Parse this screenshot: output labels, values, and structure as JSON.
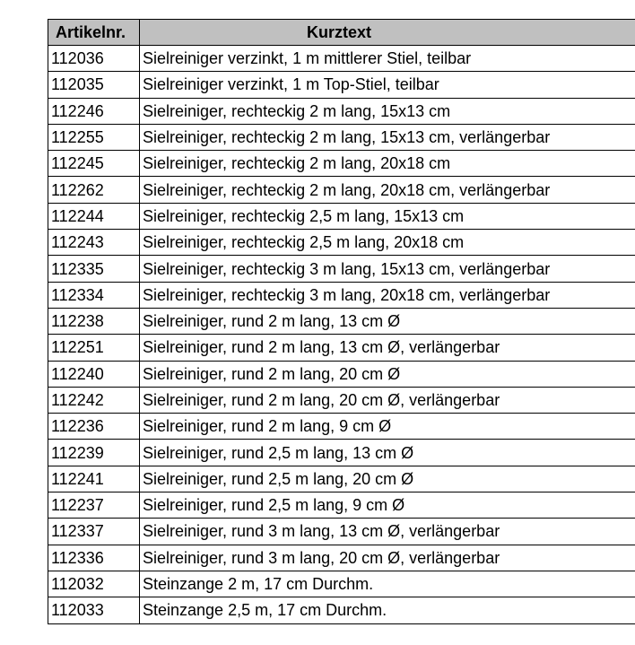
{
  "header": {
    "col1": "Artikelnr.",
    "col2": "Kurztext"
  },
  "rows": [
    [
      "112036",
      "Sielreiniger verzinkt, 1 m mittlerer Stiel, teilbar"
    ],
    [
      "112035",
      "Sielreiniger verzinkt, 1 m Top-Stiel, teilbar"
    ],
    [
      "112246",
      "Sielreiniger, rechteckig 2 m lang, 15x13 cm"
    ],
    [
      "112255",
      "Sielreiniger, rechteckig 2 m lang, 15x13 cm, verlängerbar"
    ],
    [
      "112245",
      "Sielreiniger, rechteckig 2 m lang, 20x18 cm"
    ],
    [
      "112262",
      "Sielreiniger, rechteckig 2 m lang, 20x18 cm, verlängerbar"
    ],
    [
      "112244",
      "Sielreiniger, rechteckig 2,5 m lang, 15x13 cm"
    ],
    [
      "112243",
      "Sielreiniger, rechteckig 2,5 m lang, 20x18 cm"
    ],
    [
      "112335",
      "Sielreiniger, rechteckig 3 m lang, 15x13 cm, verlängerbar"
    ],
    [
      "112334",
      "Sielreiniger, rechteckig 3 m lang, 20x18 cm, verlängerbar"
    ],
    [
      "112238",
      "Sielreiniger, rund 2 m lang, 13 cm Ø"
    ],
    [
      "112251",
      "Sielreiniger, rund 2 m lang, 13 cm Ø, verlängerbar"
    ],
    [
      "112240",
      "Sielreiniger, rund 2 m lang, 20 cm Ø"
    ],
    [
      "112242",
      "Sielreiniger, rund 2 m lang, 20 cm Ø, verlängerbar"
    ],
    [
      "112236",
      "Sielreiniger, rund 2 m lang, 9 cm Ø"
    ],
    [
      "112239",
      "Sielreiniger, rund 2,5 m lang, 13 cm Ø"
    ],
    [
      "112241",
      "Sielreiniger, rund 2,5 m lang, 20 cm Ø"
    ],
    [
      "112237",
      "Sielreiniger, rund 2,5 m lang, 9 cm Ø"
    ],
    [
      "112337",
      "Sielreiniger, rund 3 m lang, 13 cm Ø, verlängerbar"
    ],
    [
      "112336",
      "Sielreiniger, rund 3 m lang, 20 cm Ø, verlängerbar"
    ],
    [
      "112032",
      "Steinzange 2 m, 17 cm Durchm."
    ],
    [
      "112033",
      "Steinzange 2,5 m, 17 cm Durchm."
    ]
  ]
}
